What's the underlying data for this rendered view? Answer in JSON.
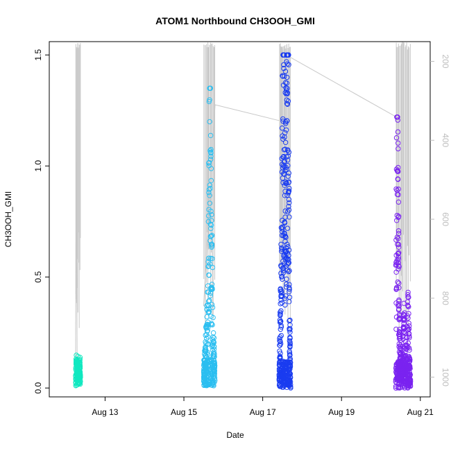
{
  "chart_data": {
    "type": "scatter",
    "title": "ATOM1 Northbound CH3OOH_GMI",
    "xlabel": "Date",
    "ylabel": "CH3OOH_GMI",
    "xlim": [
      "2016-08-11T14:00",
      "2016-08-21T06:00"
    ],
    "xticks": [
      {
        "x": "2016-08-13",
        "label": "Aug 13"
      },
      {
        "x": "2016-08-15",
        "label": "Aug 15"
      },
      {
        "x": "2016-08-17",
        "label": "Aug 17"
      },
      {
        "x": "2016-08-19",
        "label": "Aug 19"
      },
      {
        "x": "2016-08-21",
        "label": "Aug 21"
      }
    ],
    "ylim": [
      -0.04,
      1.56
    ],
    "yticks": [
      0.0,
      0.5,
      1.0,
      1.5
    ],
    "ytick_labels": [
      "0.0",
      "0.5",
      "1.0",
      "1.5"
    ],
    "y2_label": "",
    "y2_inverted": true,
    "y2lim": [
      1050,
      150
    ],
    "y2ticks": [
      200,
      400,
      600,
      800,
      1000
    ],
    "y2tick_labels": [
      "200",
      "400",
      "600",
      "800",
      "1000"
    ],
    "grid": false,
    "legend": "none",
    "marker": "open-circle",
    "colors": {
      "flight_1": "#11e8c0",
      "flight_2": "#2bbef0",
      "flight_3": "#1a3cf0",
      "flight_4": "#7a23f0",
      "pressure_line": "#c8c8c8",
      "axis": "#000000",
      "right_axis": "#bdbdbd"
    },
    "flights": [
      {
        "color": "#11e8c0",
        "start": "2016-08-12T06:00",
        "end": "2016-08-12T09:00",
        "n": 140,
        "y_min": 0.01,
        "y_max": 0.15,
        "profile": [
          [
            0,
            0.02
          ],
          [
            0.1,
            0.13
          ],
          [
            0.3,
            0.07
          ],
          [
            0.5,
            0.11
          ],
          [
            0.7,
            0.04
          ],
          [
            0.9,
            0.12
          ],
          [
            1,
            0.03
          ]
        ]
      },
      {
        "color": "#2bbef0",
        "start": "2016-08-15T12:00",
        "end": "2016-08-15T19:00",
        "n": 300,
        "y_min": 0.01,
        "y_max": 1.35,
        "profile": [
          [
            0,
            0.08
          ],
          [
            0.15,
            0.16
          ],
          [
            0.35,
            0.35
          ],
          [
            0.45,
            0.8
          ],
          [
            0.55,
            1.3
          ],
          [
            0.7,
            0.6
          ],
          [
            0.85,
            0.25
          ],
          [
            1,
            0.03
          ]
        ]
      },
      {
        "color": "#1a3cf0",
        "start": "2016-08-17T10:00",
        "end": "2016-08-17T17:00",
        "n": 420,
        "y_min": 0.0,
        "y_max": 1.5,
        "profile": [
          [
            0,
            0.05
          ],
          [
            0.2,
            0.6
          ],
          [
            0.35,
            1.4
          ],
          [
            0.5,
            1.0
          ],
          [
            0.65,
            1.3
          ],
          [
            0.8,
            1.5
          ],
          [
            0.9,
            0.4
          ],
          [
            1,
            0.0
          ]
        ]
      },
      {
        "color": "#7a23f0",
        "start": "2016-08-20T09:00",
        "end": "2016-08-20T18:00",
        "n": 420,
        "y_min": 0.0,
        "y_max": 1.22,
        "profile": [
          [
            0,
            0.5
          ],
          [
            0.1,
            1.2
          ],
          [
            0.25,
            0.3
          ],
          [
            0.4,
            0.05
          ],
          [
            0.55,
            0.3
          ],
          [
            0.7,
            0.15
          ],
          [
            0.85,
            0.35
          ],
          [
            1,
            0.02
          ]
        ]
      }
    ],
    "pressure_segments": [
      [
        [
          "2016-08-12T06:00",
          980
        ],
        [
          "2016-08-12T06:30",
          320
        ],
        [
          "2016-08-12T07:00",
          980
        ]
      ],
      [
        [
          "2016-08-15T12:00",
          820
        ],
        [
          "2016-08-15T19:00",
          310
        ],
        [
          "2016-08-17T10:00",
          350
        ]
      ],
      [
        [
          "2016-08-17T17:00",
          190
        ],
        [
          "2016-08-20T09:00",
          340
        ]
      ]
    ]
  }
}
